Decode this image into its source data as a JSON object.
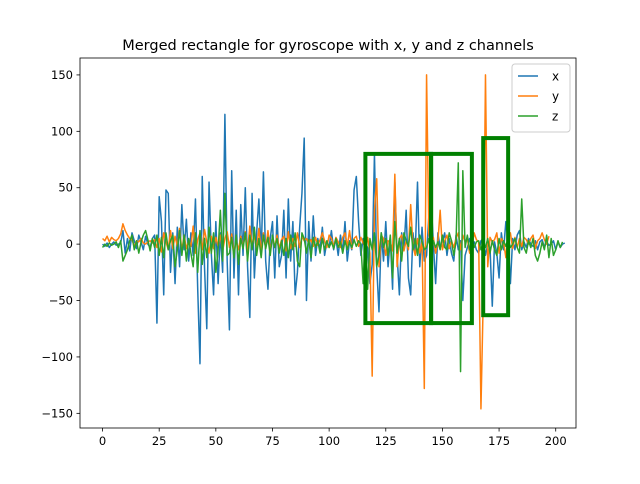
{
  "chart_data": {
    "type": "line",
    "title": "Merged rectangle for gyroscope with x, y and z channels",
    "xlabel": "",
    "ylabel": "",
    "xlim": [
      -9.95,
      208.95
    ],
    "ylim": [
      -163,
      165
    ],
    "xticks": [
      0,
      25,
      50,
      75,
      100,
      125,
      150,
      175,
      200
    ],
    "yticks": [
      -150,
      -100,
      -50,
      0,
      50,
      100,
      150
    ],
    "grid": false,
    "legend_position": "top-right",
    "series": [
      {
        "name": "x",
        "color": "#1f77b4",
        "values": [
          0,
          -2,
          1,
          -3,
          0,
          2,
          -1,
          0,
          1,
          12,
          -8,
          5,
          -6,
          10,
          3,
          -4,
          8,
          2,
          -5,
          7,
          0,
          -3,
          5,
          8,
          -70,
          42,
          20,
          -45,
          48,
          45,
          -25,
          10,
          -35,
          15,
          -20,
          35,
          -5,
          22,
          -15,
          10,
          -10,
          40,
          -40,
          -106,
          60,
          -20,
          -75,
          55,
          -8,
          -45,
          20,
          -35,
          10,
          -25,
          115,
          -15,
          -76,
          65,
          -30,
          30,
          -45,
          35,
          -10,
          50,
          -20,
          -65,
          45,
          -30,
          10,
          40,
          -10,
          64,
          -15,
          -40,
          5,
          20,
          -30,
          25,
          -20,
          -10,
          30,
          -30,
          40,
          -15,
          20,
          -45,
          -25,
          15,
          45,
          94,
          -50,
          20,
          -15,
          25,
          -10,
          5,
          -5,
          15,
          -10,
          2,
          -3,
          12,
          -5,
          5,
          -10,
          8,
          -8,
          20,
          -15,
          3,
          -5,
          48,
          60,
          20,
          -10,
          5,
          0,
          -3,
          -35,
          -18,
          80,
          -20,
          -60,
          10,
          -15,
          20,
          -20,
          5,
          -40,
          55,
          -10,
          -45,
          10,
          -5,
          30,
          -30,
          -45,
          10,
          -8,
          55,
          -20,
          15,
          -15,
          -10,
          25,
          40,
          0,
          -35,
          10,
          -3,
          2,
          10,
          -10,
          5,
          -8,
          -15,
          8,
          -5,
          3,
          -50,
          -10,
          -3,
          5,
          -3,
          2,
          -5,
          -8,
          3,
          5,
          -10,
          0,
          -3,
          -55,
          2,
          -8,
          -30,
          10,
          -5,
          20,
          2,
          -35,
          5,
          -5,
          8,
          12,
          -5,
          2,
          -3,
          5,
          0,
          -2,
          3,
          -5,
          2,
          4,
          -3,
          2,
          -1,
          0,
          3,
          -5,
          2,
          -3,
          0,
          1
        ]
      },
      {
        "name": "y",
        "color": "#ff7f0e",
        "values": [
          5,
          3,
          7,
          2,
          6,
          4,
          3,
          5,
          9,
          18,
          12,
          8,
          5,
          4,
          -2,
          3,
          2,
          5,
          1,
          0,
          2,
          3,
          1,
          4,
          -3,
          5,
          -7,
          10,
          2,
          -5,
          12,
          -4,
          7,
          -2,
          14,
          -6,
          8,
          -4,
          3,
          -2,
          16,
          -8,
          4,
          10,
          -5,
          13,
          2,
          -8,
          7,
          -4,
          6,
          -2,
          8,
          -6,
          5,
          11,
          -3,
          9,
          -8,
          3,
          -5,
          7,
          -3,
          11,
          -6,
          16,
          -2,
          8,
          -5,
          14,
          -7,
          10,
          -4,
          12,
          -6,
          6,
          -3,
          8,
          -4,
          4,
          7,
          -6,
          11,
          -4,
          5,
          -2,
          10,
          -3,
          7,
          3,
          5,
          1,
          4,
          -2,
          6,
          -1,
          4,
          10,
          3,
          -3,
          8,
          5,
          -2,
          6,
          2,
          -3,
          6,
          10,
          -2,
          12,
          -4,
          5,
          7,
          -2,
          6,
          1,
          -3,
          6,
          -8,
          -117,
          30,
          58,
          -20,
          8,
          5,
          -10,
          3,
          2,
          -6,
          62,
          -20,
          5,
          8,
          -6,
          3,
          -5,
          35,
          -2,
          -10,
          5,
          -8,
          3,
          -128,
          150,
          10,
          -5,
          6,
          -8,
          2,
          30,
          -5,
          3,
          8,
          -4,
          3,
          -3,
          5,
          10,
          -5,
          8,
          2,
          5,
          -8,
          -3,
          10,
          4,
          2,
          -146,
          -50,
          150,
          -20,
          6,
          2,
          4,
          10,
          -8,
          5,
          2,
          -12,
          8,
          10,
          -4,
          6,
          -3,
          5,
          -2,
          6,
          4,
          0,
          5,
          8,
          -4,
          3,
          5,
          10,
          4,
          0,
          7
        ]
      },
      {
        "name": "z",
        "color": "#2ca02c",
        "values": [
          -3,
          0,
          -2,
          1,
          -1,
          0,
          2,
          -3,
          3,
          -15,
          -10,
          -5,
          3,
          8,
          -5,
          3,
          -8,
          2,
          8,
          12,
          4,
          -6,
          5,
          -3,
          8,
          -10,
          6,
          -12,
          10,
          -5,
          3,
          8,
          -20,
          -5,
          12,
          -10,
          8,
          -15,
          5,
          -8,
          -20,
          10,
          -25,
          12,
          -18,
          5,
          -12,
          15,
          -8,
          10,
          -25,
          -5,
          30,
          -15,
          45,
          -10,
          -8,
          6,
          -12,
          8,
          -18,
          5,
          -4,
          10,
          -15,
          8,
          -5,
          15,
          -10,
          5,
          -12,
          8,
          -4,
          6,
          -10,
          8,
          -3,
          5,
          -8,
          3,
          -10,
          5,
          -12,
          8,
          -5,
          10,
          -15,
          -20,
          10,
          5,
          -8,
          4,
          -12,
          6,
          -3,
          3,
          -8,
          5,
          -5,
          3,
          -3,
          2,
          -4,
          5,
          -3,
          2,
          -8,
          3,
          -5,
          2,
          -3,
          4,
          -2,
          3,
          0,
          -35,
          10,
          -40,
          5,
          -5,
          10,
          -20,
          -10,
          10,
          -3,
          5,
          -10,
          8,
          -30,
          20,
          -8,
          5,
          -15,
          10,
          3,
          -2,
          15,
          -5,
          5,
          -10,
          8,
          2,
          -5,
          -3,
          5,
          -8,
          3,
          -3,
          2,
          -5,
          8,
          -3,
          -5,
          10,
          3,
          -10,
          2,
          72,
          -113,
          65,
          -3,
          8,
          -5,
          3,
          -3,
          2,
          3,
          -5,
          2,
          -3,
          5,
          -8,
          3,
          -5,
          -10,
          5,
          -5,
          3,
          -2,
          5,
          -3,
          0,
          5,
          -3,
          -8,
          40,
          -3,
          -8,
          3,
          -3,
          5,
          -10,
          -15,
          -8,
          2,
          -5,
          8,
          -12,
          5,
          -10,
          -5,
          3,
          -3,
          2
        ]
      }
    ],
    "rectangles": [
      {
        "x0": 116,
        "x1": 145,
        "y0": -70,
        "y1": 80,
        "color": "#008000"
      },
      {
        "x0": 145,
        "x1": 163,
        "y0": -70,
        "y1": 80,
        "color": "#008000"
      },
      {
        "x0": 168,
        "x1": 179,
        "y0": -63,
        "y1": 94,
        "color": "#008000"
      }
    ]
  }
}
